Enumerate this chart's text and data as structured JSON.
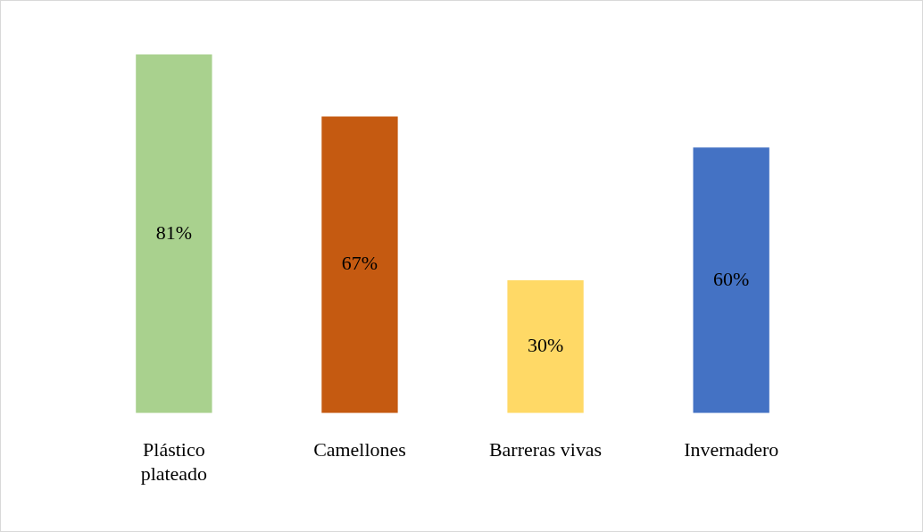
{
  "chart_data": {
    "type": "bar",
    "categories": [
      "Plástico plateado",
      "Camellones",
      "Barreras vivas",
      "Invernadero"
    ],
    "values": [
      81,
      67,
      30,
      60
    ],
    "colors": [
      "#a9d18e",
      "#c55a11",
      "#ffd966",
      "#4472c4"
    ],
    "value_labels": [
      "81%",
      "67%",
      "30%",
      "60%"
    ],
    "grid": false,
    "legend": false
  }
}
